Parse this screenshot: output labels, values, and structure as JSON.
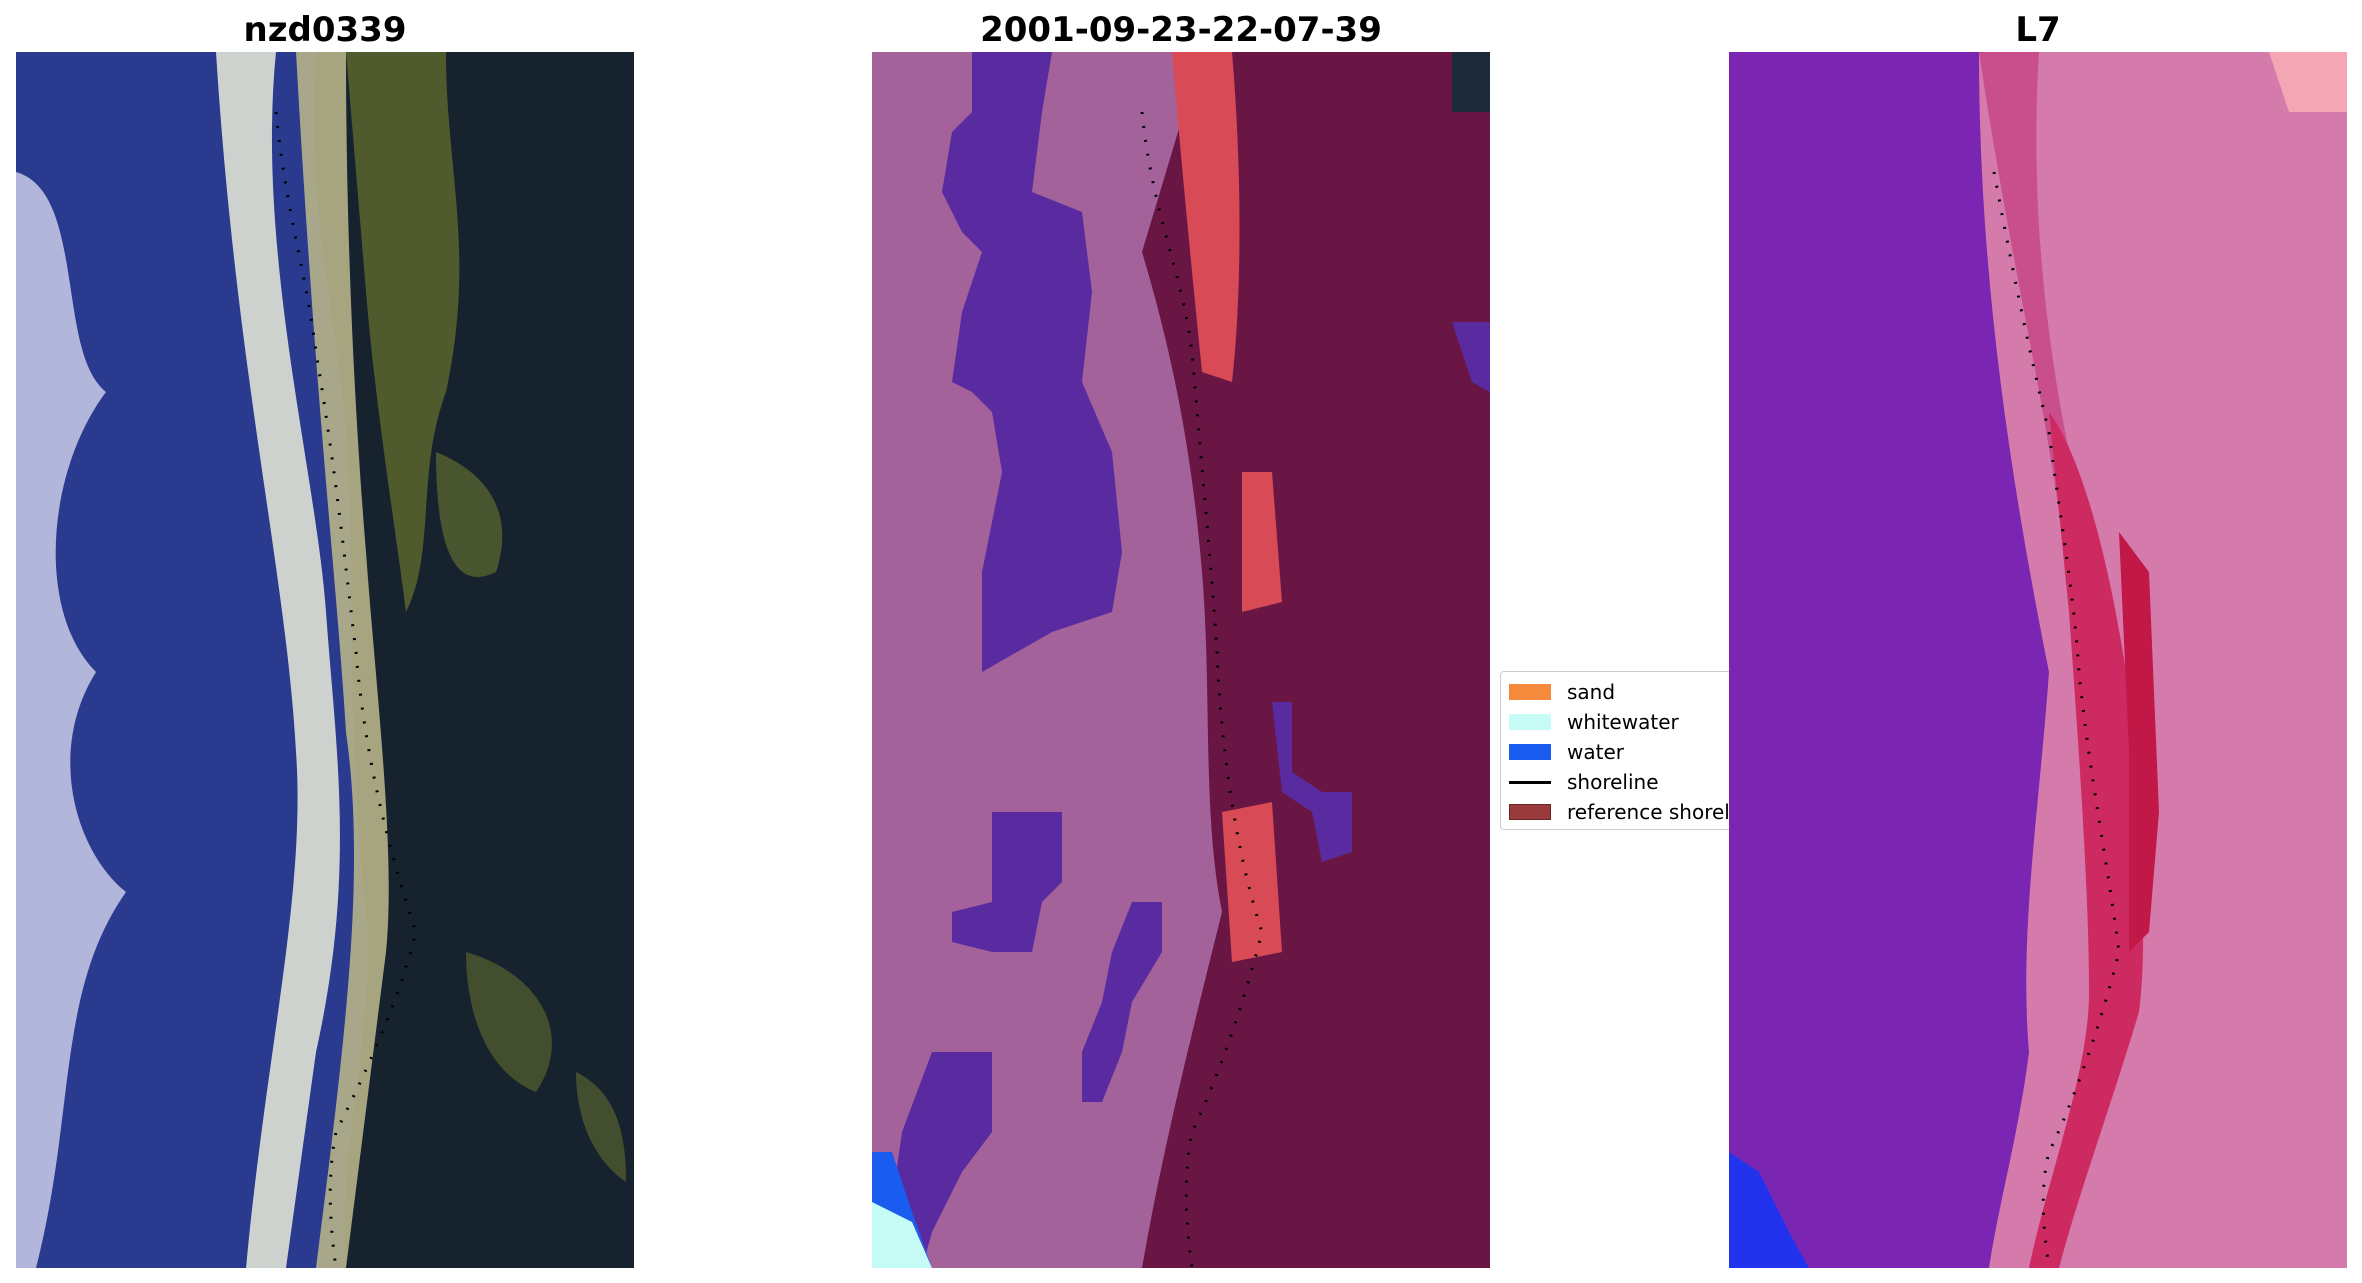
{
  "panels": [
    {
      "title": "nzd0339",
      "kind": "rgb-satellite-image"
    },
    {
      "title": "2001-09-23-22-07-39",
      "kind": "classified-overlay"
    },
    {
      "title": "L7",
      "kind": "ndwi-like-overlay"
    }
  ],
  "legend": {
    "items": [
      {
        "label": "sand",
        "color": "#f58a3c",
        "type": "patch"
      },
      {
        "label": "whitewater",
        "color": "#c7fbf5",
        "type": "patch"
      },
      {
        "label": "water",
        "color": "#1a5cf0",
        "type": "patch"
      },
      {
        "label": "shoreline",
        "color": "#000000",
        "type": "line"
      },
      {
        "label": "reference shoreline buffer",
        "color": "#9a3b3b",
        "type": "patch"
      }
    ]
  },
  "colors": {
    "deep_water": "#1c2a8a",
    "surf": "#d8dfe6",
    "beach": "#c8c69a",
    "vegetation": "#55612e",
    "dark_land": "#16232e",
    "class_sand_bg": "#a4629b",
    "class_water_blob": "#5a2ba0",
    "class_land": "#6a1645",
    "class_sand_hi": "#d84a56",
    "l7_water": "#7a26b2",
    "l7_land": "#d47bac",
    "l7_hi": "#cc2a60",
    "blue_corner": "#2233ee"
  }
}
